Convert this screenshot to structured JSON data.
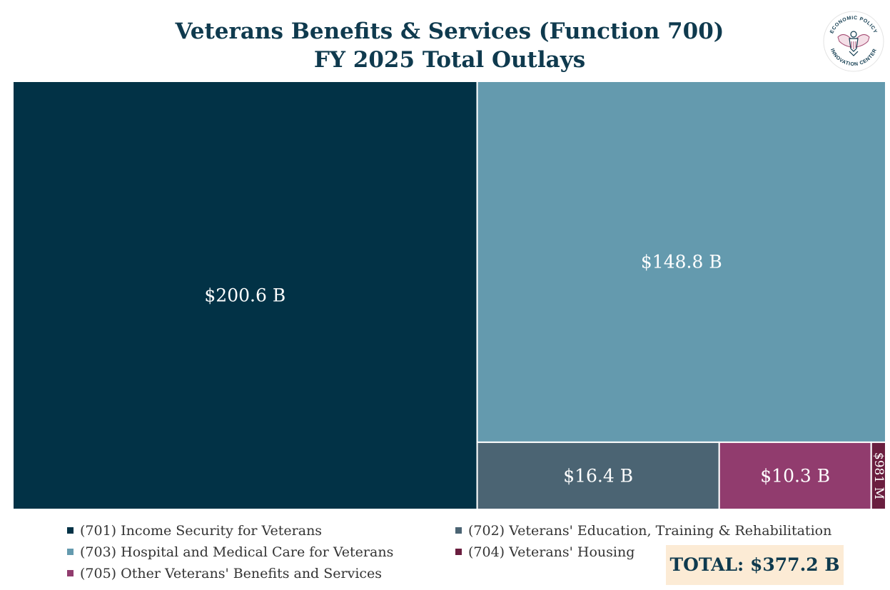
{
  "title": {
    "line1": "Veterans Benefits & Services (Function 700)",
    "line2": "FY 2025 Total Outlays"
  },
  "logo": {
    "icon": "eagle-seal-icon",
    "text_top": "ECONOMIC POLICY",
    "text_bottom": "INNOVATION CENTER"
  },
  "chart_data": {
    "type": "treemap",
    "unit": "$ billions",
    "items": [
      {
        "code": "701",
        "name": "(701) Income Security for Veterans",
        "value": 200.6,
        "label": "$200.6 B",
        "color": "#023246"
      },
      {
        "code": "703",
        "name": "(703) Hospital and Medical Care for Veterans",
        "value": 148.8,
        "label": "$148.8 B",
        "color": "#649aae"
      },
      {
        "code": "702",
        "name": "(702) Veterans' Education, Training & Rehabilitation",
        "value": 16.4,
        "label": "$16.4 B",
        "color": "#4b6473"
      },
      {
        "code": "705",
        "name": "(705) Other Veterans' Benefits and Services",
        "value": 10.3,
        "label": "$10.3 B",
        "color": "#913c6e"
      },
      {
        "code": "704",
        "name": "(704) Veterans' Housing",
        "value": 0.981,
        "label": "$981 M",
        "color": "#6a1e3f"
      }
    ],
    "legend": [
      "701",
      "702",
      "703",
      "704",
      "705"
    ],
    "legend_position": "bottom",
    "total_label": "TOTAL: $377.2 B",
    "total_value": 377.2
  }
}
